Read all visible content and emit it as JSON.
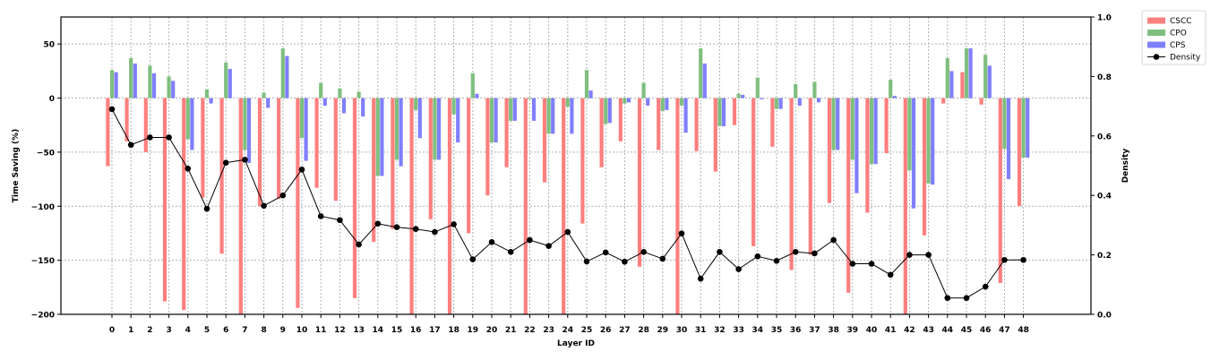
{
  "chart_data": {
    "type": "bar",
    "xlabel": "Layer ID",
    "ylabel": "Time Saving (%)",
    "y2label": "Density",
    "ylim": [
      -200,
      75
    ],
    "y2lim": [
      0.0,
      1.0
    ],
    "yticks": [
      50,
      0,
      -50,
      -100,
      -150,
      -200
    ],
    "y2ticks": [
      1.0,
      0.8,
      0.6,
      0.4,
      0.2,
      0.0
    ],
    "grid": true,
    "legend_position": "outside-top-right",
    "categories": [
      "0",
      "1",
      "2",
      "3",
      "4",
      "5",
      "6",
      "7",
      "8",
      "9",
      "10",
      "11",
      "12",
      "13",
      "14",
      "15",
      "16",
      "17",
      "18",
      "19",
      "20",
      "21",
      "22",
      "23",
      "24",
      "25",
      "26",
      "27",
      "28",
      "29",
      "30",
      "31",
      "32",
      "33",
      "34",
      "35",
      "36",
      "37",
      "38",
      "39",
      "40",
      "41",
      "42",
      "43",
      "44",
      "45",
      "46",
      "47",
      "48"
    ],
    "series": [
      {
        "name": "CSCC",
        "color": "#ff7f7f",
        "values": [
          -63,
          -40,
          -50,
          -188,
          -196,
          -92,
          -144,
          -200,
          -100,
          -93,
          -194,
          -83,
          -95,
          -185,
          -133,
          -121,
          -200,
          -112,
          -200,
          -125,
          -90,
          -64,
          -200,
          -78,
          -200,
          -116,
          -64,
          -40,
          -156,
          -48,
          -200,
          -49,
          -68,
          -25,
          -137,
          -45,
          -159,
          -145,
          -97,
          -180,
          -106,
          -51,
          -200,
          -127,
          -5,
          24,
          -6,
          -171,
          -100
        ]
      },
      {
        "name": "CPO",
        "color": "#7fbf7f",
        "values": [
          26,
          37,
          30,
          20,
          -38,
          8,
          33,
          -48,
          5,
          46,
          -37,
          14,
          9,
          6,
          -72,
          -57,
          -11,
          -57,
          -15,
          23,
          -41,
          -21,
          -1,
          -33,
          -8,
          26,
          -24,
          -5,
          14,
          -12,
          -7,
          46,
          -26,
          4,
          19,
          -10,
          13,
          15,
          -48,
          -57,
          -61,
          17,
          -67,
          -79,
          37,
          46,
          40,
          -47,
          -55
        ]
      },
      {
        "name": "CPS",
        "color": "#7f7fff",
        "values": [
          24,
          32,
          23,
          16,
          -48,
          -5,
          27,
          -60,
          -9,
          39,
          -58,
          -7,
          -14,
          -17,
          -72,
          -63,
          -37,
          -57,
          -41,
          4,
          -41,
          -21,
          -21,
          -33,
          -33,
          7,
          -23,
          -4,
          -7,
          -11,
          -32,
          32,
          -26,
          3,
          -1,
          -10,
          -7,
          -4,
          -48,
          -88,
          -61,
          2,
          -102,
          -80,
          25,
          46,
          30,
          -75,
          -55
        ]
      },
      {
        "name": "Density",
        "color": "#000000",
        "axis": "y2",
        "values": [
          0.69,
          0.57,
          0.595,
          0.595,
          0.49,
          0.355,
          0.51,
          0.52,
          0.365,
          0.4,
          0.487,
          0.33,
          0.317,
          0.235,
          0.305,
          0.293,
          0.287,
          0.277,
          0.303,
          0.185,
          0.243,
          0.21,
          0.25,
          0.23,
          0.277,
          0.178,
          0.208,
          0.177,
          0.21,
          0.187,
          0.272,
          0.12,
          0.21,
          0.152,
          0.195,
          0.18,
          0.21,
          0.205,
          0.25,
          0.17,
          0.17,
          0.133,
          0.2,
          0.2,
          0.055,
          0.055,
          0.093,
          0.183,
          0.183
        ]
      }
    ]
  }
}
